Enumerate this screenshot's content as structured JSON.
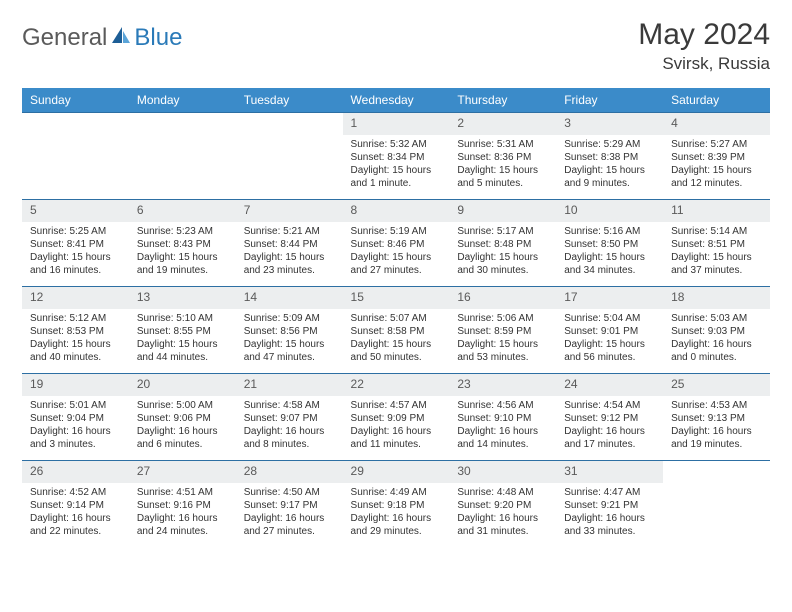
{
  "logo": {
    "general": "General",
    "blue": "Blue"
  },
  "title": "May 2024",
  "location": "Svirsk, Russia",
  "colors": {
    "header_bg": "#3b8bc9",
    "header_fg": "#ffffff",
    "row_border": "#2d6fa3",
    "daynum_bg": "#eceeef",
    "daynum_fg": "#5a5a5a",
    "body_text": "#333333",
    "logo_gray": "#5a5a5a",
    "logo_blue": "#2a7ab8",
    "sail_dark": "#1d5e96",
    "sail_light": "#5ba4d8"
  },
  "weekdays": [
    "Sunday",
    "Monday",
    "Tuesday",
    "Wednesday",
    "Thursday",
    "Friday",
    "Saturday"
  ],
  "weeks": [
    [
      null,
      null,
      null,
      {
        "n": "1",
        "sunrise": "Sunrise: 5:32 AM",
        "sunset": "Sunset: 8:34 PM",
        "daylight": "Daylight: 15 hours and 1 minute."
      },
      {
        "n": "2",
        "sunrise": "Sunrise: 5:31 AM",
        "sunset": "Sunset: 8:36 PM",
        "daylight": "Daylight: 15 hours and 5 minutes."
      },
      {
        "n": "3",
        "sunrise": "Sunrise: 5:29 AM",
        "sunset": "Sunset: 8:38 PM",
        "daylight": "Daylight: 15 hours and 9 minutes."
      },
      {
        "n": "4",
        "sunrise": "Sunrise: 5:27 AM",
        "sunset": "Sunset: 8:39 PM",
        "daylight": "Daylight: 15 hours and 12 minutes."
      }
    ],
    [
      {
        "n": "5",
        "sunrise": "Sunrise: 5:25 AM",
        "sunset": "Sunset: 8:41 PM",
        "daylight": "Daylight: 15 hours and 16 minutes."
      },
      {
        "n": "6",
        "sunrise": "Sunrise: 5:23 AM",
        "sunset": "Sunset: 8:43 PM",
        "daylight": "Daylight: 15 hours and 19 minutes."
      },
      {
        "n": "7",
        "sunrise": "Sunrise: 5:21 AM",
        "sunset": "Sunset: 8:44 PM",
        "daylight": "Daylight: 15 hours and 23 minutes."
      },
      {
        "n": "8",
        "sunrise": "Sunrise: 5:19 AM",
        "sunset": "Sunset: 8:46 PM",
        "daylight": "Daylight: 15 hours and 27 minutes."
      },
      {
        "n": "9",
        "sunrise": "Sunrise: 5:17 AM",
        "sunset": "Sunset: 8:48 PM",
        "daylight": "Daylight: 15 hours and 30 minutes."
      },
      {
        "n": "10",
        "sunrise": "Sunrise: 5:16 AM",
        "sunset": "Sunset: 8:50 PM",
        "daylight": "Daylight: 15 hours and 34 minutes."
      },
      {
        "n": "11",
        "sunrise": "Sunrise: 5:14 AM",
        "sunset": "Sunset: 8:51 PM",
        "daylight": "Daylight: 15 hours and 37 minutes."
      }
    ],
    [
      {
        "n": "12",
        "sunrise": "Sunrise: 5:12 AM",
        "sunset": "Sunset: 8:53 PM",
        "daylight": "Daylight: 15 hours and 40 minutes."
      },
      {
        "n": "13",
        "sunrise": "Sunrise: 5:10 AM",
        "sunset": "Sunset: 8:55 PM",
        "daylight": "Daylight: 15 hours and 44 minutes."
      },
      {
        "n": "14",
        "sunrise": "Sunrise: 5:09 AM",
        "sunset": "Sunset: 8:56 PM",
        "daylight": "Daylight: 15 hours and 47 minutes."
      },
      {
        "n": "15",
        "sunrise": "Sunrise: 5:07 AM",
        "sunset": "Sunset: 8:58 PM",
        "daylight": "Daylight: 15 hours and 50 minutes."
      },
      {
        "n": "16",
        "sunrise": "Sunrise: 5:06 AM",
        "sunset": "Sunset: 8:59 PM",
        "daylight": "Daylight: 15 hours and 53 minutes."
      },
      {
        "n": "17",
        "sunrise": "Sunrise: 5:04 AM",
        "sunset": "Sunset: 9:01 PM",
        "daylight": "Daylight: 15 hours and 56 minutes."
      },
      {
        "n": "18",
        "sunrise": "Sunrise: 5:03 AM",
        "sunset": "Sunset: 9:03 PM",
        "daylight": "Daylight: 16 hours and 0 minutes."
      }
    ],
    [
      {
        "n": "19",
        "sunrise": "Sunrise: 5:01 AM",
        "sunset": "Sunset: 9:04 PM",
        "daylight": "Daylight: 16 hours and 3 minutes."
      },
      {
        "n": "20",
        "sunrise": "Sunrise: 5:00 AM",
        "sunset": "Sunset: 9:06 PM",
        "daylight": "Daylight: 16 hours and 6 minutes."
      },
      {
        "n": "21",
        "sunrise": "Sunrise: 4:58 AM",
        "sunset": "Sunset: 9:07 PM",
        "daylight": "Daylight: 16 hours and 8 minutes."
      },
      {
        "n": "22",
        "sunrise": "Sunrise: 4:57 AM",
        "sunset": "Sunset: 9:09 PM",
        "daylight": "Daylight: 16 hours and 11 minutes."
      },
      {
        "n": "23",
        "sunrise": "Sunrise: 4:56 AM",
        "sunset": "Sunset: 9:10 PM",
        "daylight": "Daylight: 16 hours and 14 minutes."
      },
      {
        "n": "24",
        "sunrise": "Sunrise: 4:54 AM",
        "sunset": "Sunset: 9:12 PM",
        "daylight": "Daylight: 16 hours and 17 minutes."
      },
      {
        "n": "25",
        "sunrise": "Sunrise: 4:53 AM",
        "sunset": "Sunset: 9:13 PM",
        "daylight": "Daylight: 16 hours and 19 minutes."
      }
    ],
    [
      {
        "n": "26",
        "sunrise": "Sunrise: 4:52 AM",
        "sunset": "Sunset: 9:14 PM",
        "daylight": "Daylight: 16 hours and 22 minutes."
      },
      {
        "n": "27",
        "sunrise": "Sunrise: 4:51 AM",
        "sunset": "Sunset: 9:16 PM",
        "daylight": "Daylight: 16 hours and 24 minutes."
      },
      {
        "n": "28",
        "sunrise": "Sunrise: 4:50 AM",
        "sunset": "Sunset: 9:17 PM",
        "daylight": "Daylight: 16 hours and 27 minutes."
      },
      {
        "n": "29",
        "sunrise": "Sunrise: 4:49 AM",
        "sunset": "Sunset: 9:18 PM",
        "daylight": "Daylight: 16 hours and 29 minutes."
      },
      {
        "n": "30",
        "sunrise": "Sunrise: 4:48 AM",
        "sunset": "Sunset: 9:20 PM",
        "daylight": "Daylight: 16 hours and 31 minutes."
      },
      {
        "n": "31",
        "sunrise": "Sunrise: 4:47 AM",
        "sunset": "Sunset: 9:21 PM",
        "daylight": "Daylight: 16 hours and 33 minutes."
      },
      null
    ]
  ]
}
